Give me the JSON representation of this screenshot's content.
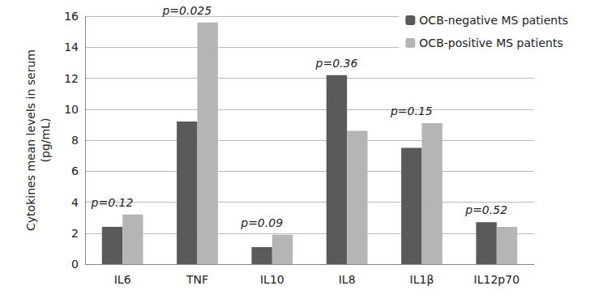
{
  "chart_data": {
    "type": "bar",
    "ylabel": "Cytokines mean levels in serum\n(pg/mL)",
    "categories": [
      "IL6",
      "TNF",
      "IL10",
      "IL8",
      "IL1β",
      "IL12p70"
    ],
    "series": [
      {
        "name": "OCB-negative MS patients",
        "color": "#5a5a5a",
        "values": [
          2.4,
          9.2,
          1.1,
          12.2,
          7.5,
          2.7
        ]
      },
      {
        "name": "OCB-positive MS patients",
        "color": "#b5b5b5",
        "values": [
          3.2,
          15.6,
          1.9,
          8.6,
          9.1,
          2.4
        ]
      }
    ],
    "ylim": [
      0,
      16
    ],
    "yticks": [
      0,
      2,
      4,
      6,
      8,
      10,
      12,
      14,
      16
    ],
    "grid": true,
    "legend": "upper right",
    "annotations": [
      {
        "text": "p=0.12",
        "category": "IL6"
      },
      {
        "text": "p=0.025",
        "category": "TNF"
      },
      {
        "text": "p=0.09",
        "category": "IL10"
      },
      {
        "text": "p=0.36",
        "category": "IL8"
      },
      {
        "text": "p=0.15",
        "category": "IL1β"
      },
      {
        "text": "p=0.52",
        "category": "IL12p70"
      }
    ]
  }
}
